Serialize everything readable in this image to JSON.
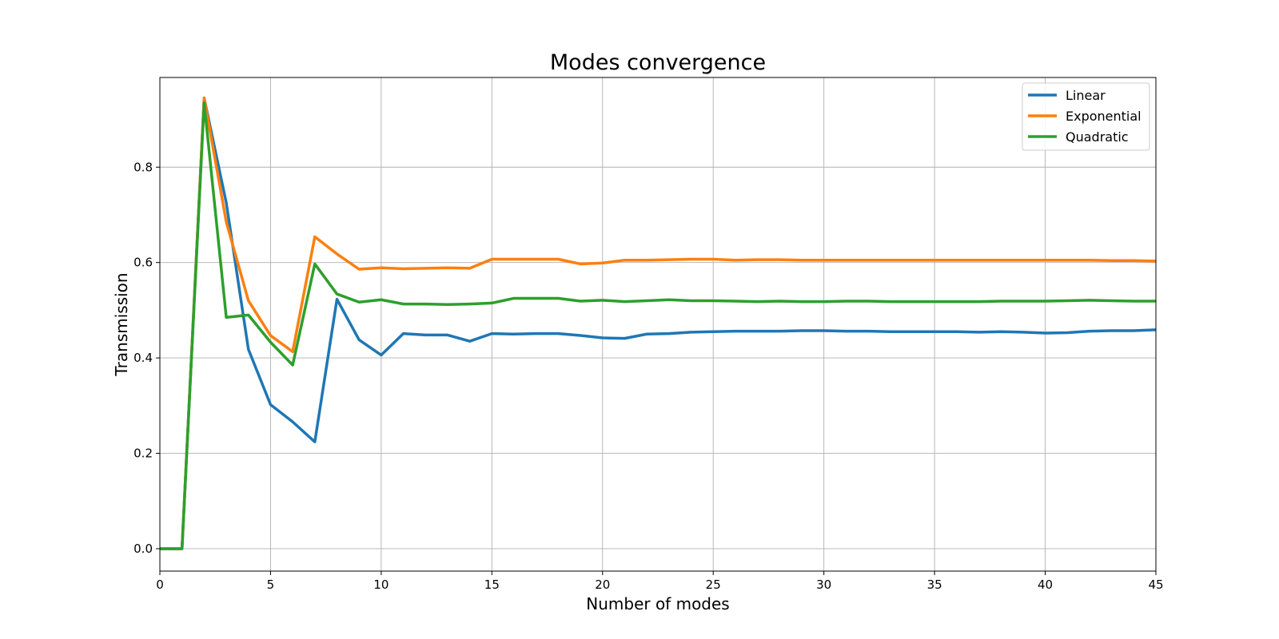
{
  "chart_data": {
    "type": "line",
    "title": "Modes convergence",
    "xlabel": "Number of modes",
    "ylabel": "Transmission",
    "xlim": [
      0,
      45
    ],
    "ylim": [
      -0.047,
      0.988
    ],
    "xticks": [
      0,
      5,
      10,
      15,
      20,
      25,
      30,
      35,
      40,
      45
    ],
    "yticks": [
      0.0,
      0.2,
      0.4,
      0.6,
      0.8
    ],
    "grid": true,
    "legend_position": "upper right",
    "x": [
      0,
      1,
      2,
      3,
      4,
      5,
      6,
      7,
      8,
      9,
      10,
      11,
      12,
      13,
      14,
      15,
      16,
      17,
      18,
      19,
      20,
      21,
      22,
      23,
      24,
      25,
      26,
      27,
      28,
      29,
      30,
      31,
      32,
      33,
      34,
      35,
      36,
      37,
      38,
      39,
      40,
      41,
      42,
      43,
      44,
      45
    ],
    "series": [
      {
        "name": "Linear",
        "color": "#1f77b4",
        "values": [
          0.0,
          0.0,
          0.945,
          0.725,
          0.418,
          0.302,
          0.266,
          0.224,
          0.523,
          0.438,
          0.406,
          0.451,
          0.448,
          0.448,
          0.435,
          0.451,
          0.45,
          0.451,
          0.451,
          0.447,
          0.442,
          0.441,
          0.45,
          0.451,
          0.454,
          0.455,
          0.456,
          0.456,
          0.456,
          0.457,
          0.457,
          0.456,
          0.456,
          0.455,
          0.455,
          0.455,
          0.455,
          0.454,
          0.455,
          0.454,
          0.452,
          0.453,
          0.456,
          0.457,
          0.457,
          0.459
        ]
      },
      {
        "name": "Exponential",
        "color": "#ff7f0e",
        "values": [
          0.0,
          0.0,
          0.945,
          0.685,
          0.52,
          0.447,
          0.413,
          0.654,
          0.618,
          0.586,
          0.589,
          0.587,
          0.588,
          0.589,
          0.588,
          0.607,
          0.607,
          0.607,
          0.607,
          0.597,
          0.599,
          0.605,
          0.605,
          0.606,
          0.607,
          0.607,
          0.605,
          0.606,
          0.606,
          0.605,
          0.605,
          0.605,
          0.605,
          0.605,
          0.605,
          0.605,
          0.605,
          0.605,
          0.605,
          0.605,
          0.605,
          0.605,
          0.605,
          0.604,
          0.604,
          0.603
        ]
      },
      {
        "name": "Quadratic",
        "color": "#2ca02c",
        "values": [
          0.0,
          0.0,
          0.935,
          0.485,
          0.49,
          0.433,
          0.385,
          0.597,
          0.534,
          0.517,
          0.522,
          0.513,
          0.513,
          0.512,
          0.513,
          0.515,
          0.525,
          0.525,
          0.525,
          0.519,
          0.521,
          0.518,
          0.52,
          0.522,
          0.52,
          0.52,
          0.519,
          0.518,
          0.519,
          0.518,
          0.518,
          0.519,
          0.519,
          0.518,
          0.518,
          0.518,
          0.518,
          0.518,
          0.519,
          0.519,
          0.519,
          0.52,
          0.521,
          0.52,
          0.519,
          0.519
        ]
      }
    ]
  }
}
